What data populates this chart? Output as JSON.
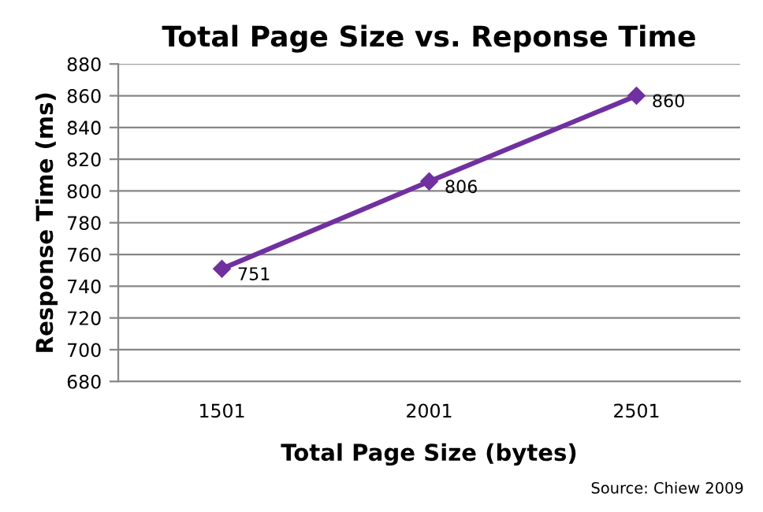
{
  "chart_data": {
    "type": "line",
    "title": "Total Page Size vs. Reponse Time",
    "xlabel": "Total Page Size (bytes)",
    "ylabel": "Response Time (ms)",
    "categories": [
      "1501",
      "2001",
      "2501"
    ],
    "series": [
      {
        "color": "#7030a0",
        "values": [
          751,
          806,
          860
        ]
      }
    ],
    "ylim": [
      680,
      880
    ],
    "yticks": [
      680,
      700,
      720,
      740,
      760,
      780,
      800,
      820,
      840,
      860,
      880
    ],
    "grid": "y",
    "marker": "diamond",
    "data_labels": true,
    "legend": false,
    "annotations": [
      "Source: Chiew 2009"
    ]
  }
}
